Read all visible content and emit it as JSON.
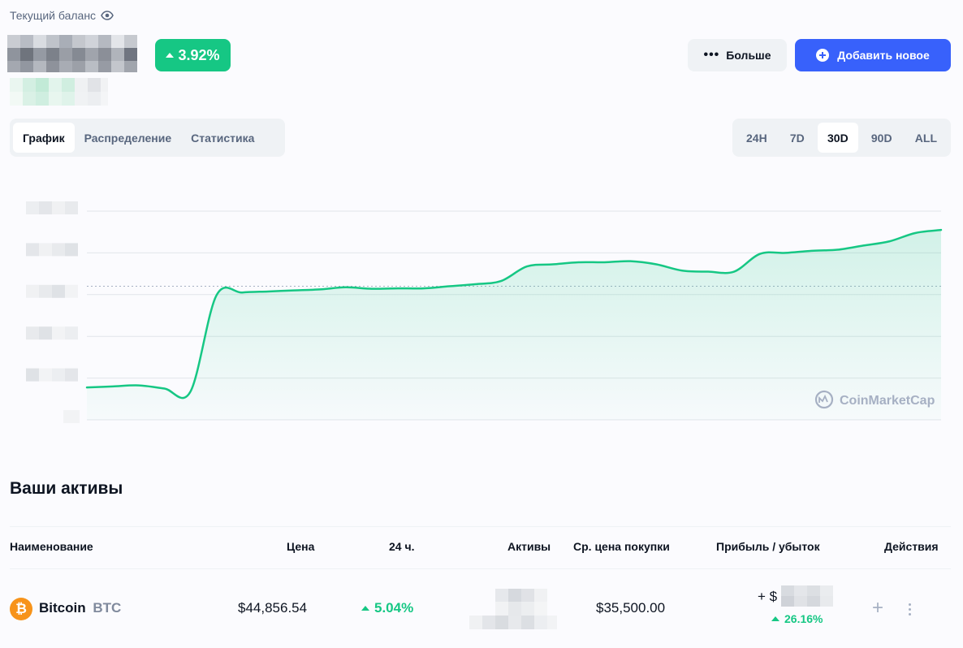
{
  "header": {
    "balance_label": "Текущий баланс",
    "change_percent": "3.92%",
    "more_label": "Больше",
    "add_label": "Добавить новое"
  },
  "tabs": [
    {
      "label": "График",
      "active": true
    },
    {
      "label": "Распределение",
      "active": false
    },
    {
      "label": "Статистика",
      "active": false
    }
  ],
  "periods": [
    {
      "label": "24H",
      "active": false
    },
    {
      "label": "7D",
      "active": false
    },
    {
      "label": "30D",
      "active": true
    },
    {
      "label": "90D",
      "active": false
    },
    {
      "label": "ALL",
      "active": false
    }
  ],
  "chart_data": {
    "type": "area",
    "y_axis_hidden": true,
    "grid": true,
    "color": "#16c784",
    "watermark": "CoinMarketCap",
    "series": [
      {
        "values": [
          0.155,
          0.16,
          0.165,
          0.15,
          0.135,
          0.595,
          0.61,
          0.615,
          0.62,
          0.625,
          0.635,
          0.628,
          0.63,
          0.63,
          0.64,
          0.65,
          0.665,
          0.735,
          0.745,
          0.755,
          0.755,
          0.76,
          0.745,
          0.715,
          0.71,
          0.71,
          0.795,
          0.8,
          0.81,
          0.815,
          0.835,
          0.855,
          0.895,
          0.91
        ]
      }
    ]
  },
  "assets": {
    "title": "Ваши активы",
    "columns": {
      "name": "Наименование",
      "price": "Цена",
      "change_24h": "24 ч.",
      "holdings": "Активы",
      "avg_buy": "Ср. цена покупки",
      "pnl": "Прибыль / убыток",
      "actions": "Действия"
    },
    "rows": [
      {
        "name": "Bitcoin",
        "symbol": "BTC",
        "icon": "bitcoin-icon",
        "price": "$44,856.54",
        "change_24h": "5.04%",
        "avg_buy": "$35,500.00",
        "pnl_prefix": "+ $",
        "pnl_percent": "26.16%"
      }
    ]
  },
  "colors": {
    "accent": "#3861fb",
    "positive": "#16c784",
    "muted": "#58667e"
  }
}
